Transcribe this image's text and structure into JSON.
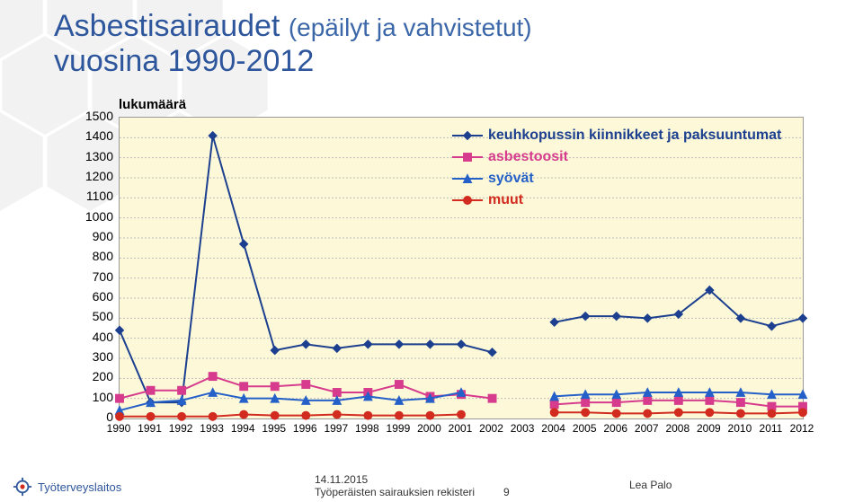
{
  "title_main": "Asbestisairaudet",
  "title_paren": "(epäilyt ja vahvistetut)",
  "title_line2": "vuosina 1990-2012",
  "chart": {
    "type": "line",
    "axis_title": "lukumäärä",
    "background": "#fdf9d8",
    "grid_color": "#bdbdbd",
    "ylim": [
      0,
      1500
    ],
    "ytick_step": 100,
    "yticks": [
      1500,
      1400,
      1300,
      1200,
      1100,
      1000,
      900,
      800,
      700,
      600,
      500,
      400,
      300,
      200,
      100,
      0
    ],
    "years": [
      1990,
      1991,
      1992,
      1993,
      1994,
      1995,
      1996,
      1997,
      1998,
      1999,
      2000,
      2001,
      2002,
      2003,
      2004,
      2005,
      2006,
      2007,
      2008,
      2009,
      2010,
      2011,
      2012
    ],
    "gap_years": [
      2002,
      2003
    ],
    "series": [
      {
        "key": "keuhko",
        "label": "keuhkopussin kiinnikkeet ja paksuuntumat",
        "color": "#1c3f8f",
        "marker": "diamond",
        "values": [
          440,
          80,
          80,
          1410,
          870,
          340,
          370,
          350,
          370,
          370,
          370,
          370,
          330,
          null,
          480,
          510,
          510,
          500,
          520,
          640,
          500,
          460,
          500
        ]
      },
      {
        "key": "asbestoosit",
        "label": "asbestoosit",
        "color": "#d63b8d",
        "marker": "square",
        "values": [
          100,
          140,
          140,
          210,
          160,
          160,
          170,
          130,
          130,
          170,
          110,
          120,
          100,
          null,
          70,
          80,
          80,
          90,
          90,
          90,
          80,
          60,
          60
        ]
      },
      {
        "key": "syovat",
        "label": "syövät",
        "color": "#2560c9",
        "marker": "triangle",
        "values": [
          40,
          80,
          90,
          130,
          100,
          100,
          90,
          90,
          110,
          90,
          100,
          130,
          null,
          null,
          110,
          120,
          120,
          130,
          130,
          130,
          130,
          120,
          120
        ]
      },
      {
        "key": "muut",
        "label": "muut",
        "color": "#d22b1f",
        "marker": "circle",
        "values": [
          10,
          10,
          10,
          10,
          20,
          15,
          15,
          20,
          15,
          15,
          15,
          20,
          null,
          null,
          30,
          30,
          25,
          25,
          30,
          30,
          25,
          25,
          30
        ]
      }
    ]
  },
  "footer": {
    "logo_text": "Työterveyslaitos",
    "date": "14.11.2015",
    "source": "Työperäisten sairauksien rekisteri",
    "page": "9",
    "author": "Lea Palo"
  },
  "colors": {
    "title": "#2e569c",
    "hex": "#e8e8e8"
  }
}
